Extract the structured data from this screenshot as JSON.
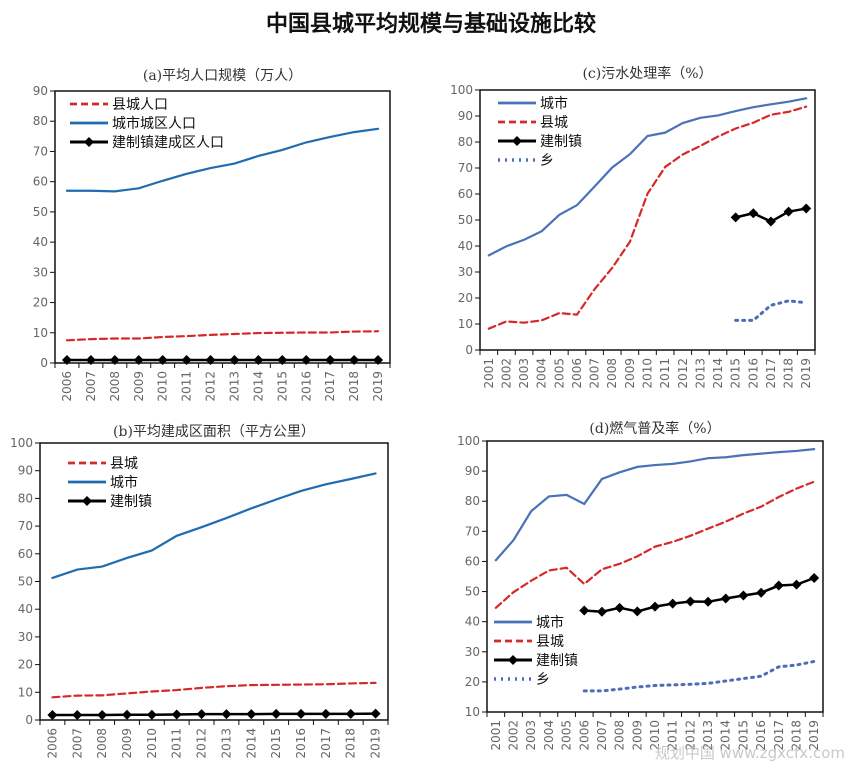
{
  "title": "中国县城平均规模与基础设施比较",
  "watermark": "规划中国 www.zgxcfx.com",
  "colors": {
    "city_a": "#1f6db0",
    "city_c": "#4a72b8",
    "county": "#d42a2a",
    "town": "#000000",
    "township": "#4f6cb8"
  },
  "chart_data": [
    {
      "id": "a",
      "type": "line",
      "title": "(a)平均人口规模（万人）",
      "x": [
        "2006",
        "2007",
        "2008",
        "2009",
        "2010",
        "2011",
        "2012",
        "2013",
        "2014",
        "2015",
        "2016",
        "2017",
        "2018",
        "2019"
      ],
      "ylim": [
        0,
        90
      ],
      "yticks": [
        0,
        10,
        20,
        30,
        40,
        50,
        60,
        70,
        80,
        90
      ],
      "grid": false,
      "legend": "top-left",
      "series": [
        {
          "name": "县城人口",
          "style": "dashed",
          "color": "#d42a2a",
          "values": [
            7.5,
            7.9,
            8.1,
            8.1,
            8.6,
            8.9,
            9.3,
            9.6,
            9.9,
            10.0,
            10.1,
            10.1,
            10.4,
            10.5
          ]
        },
        {
          "name": "城市城区人口",
          "style": "solid",
          "color": "#1f6db0",
          "values": [
            57.0,
            57.0,
            56.8,
            57.8,
            60.3,
            62.6,
            64.5,
            66.0,
            68.5,
            70.5,
            73.0,
            74.8,
            76.4,
            77.5
          ]
        },
        {
          "name": "建制镇建成区人口",
          "style": "diamond",
          "color": "#000000",
          "values": [
            1.0,
            1.0,
            1.0,
            1.0,
            1.0,
            1.0,
            1.0,
            1.0,
            1.0,
            1.0,
            1.0,
            1.0,
            1.0,
            1.0
          ]
        }
      ]
    },
    {
      "id": "c",
      "type": "line",
      "title": "(c)污水处理率（%）",
      "x": [
        "2001",
        "2002",
        "2003",
        "2004",
        "2005",
        "2006",
        "2007",
        "2008",
        "2009",
        "2010",
        "2011",
        "2012",
        "2013",
        "2014",
        "2015",
        "2016",
        "2017",
        "2018",
        "2019"
      ],
      "ylim": [
        0,
        100
      ],
      "yticks": [
        0,
        10,
        20,
        30,
        40,
        50,
        60,
        70,
        80,
        90,
        100
      ],
      "grid": false,
      "legend": "top-left",
      "series": [
        {
          "name": "城市",
          "style": "solid",
          "color": "#4a72b8",
          "values": [
            36.4,
            39.9,
            42.4,
            45.7,
            52.0,
            55.7,
            62.9,
            70.2,
            75.3,
            82.3,
            83.6,
            87.3,
            89.3,
            90.2,
            91.9,
            93.4,
            94.5,
            95.5,
            96.8
          ]
        },
        {
          "name": "县城",
          "style": "dashed",
          "color": "#d42a2a",
          "values": [
            8.2,
            11.0,
            10.5,
            11.4,
            14.2,
            13.6,
            23.4,
            31.6,
            41.6,
            60.1,
            70.4,
            75.2,
            78.5,
            82.1,
            85.2,
            87.4,
            90.5,
            91.6,
            93.6
          ]
        },
        {
          "name": "建制镇",
          "style": "diamond",
          "color": "#000000",
          "values": [
            null,
            null,
            null,
            null,
            null,
            null,
            null,
            null,
            null,
            null,
            null,
            null,
            null,
            null,
            51.0,
            52.6,
            49.4,
            53.2,
            54.4
          ]
        },
        {
          "name": "乡",
          "style": "dotted",
          "color": "#4f6cb8",
          "values": [
            null,
            null,
            null,
            null,
            null,
            null,
            null,
            null,
            null,
            null,
            null,
            null,
            null,
            null,
            11.4,
            11.4,
            17.2,
            18.9,
            18.2
          ]
        }
      ]
    },
    {
      "id": "b",
      "type": "line",
      "title": "(b)平均建成区面积（平方公里）",
      "x": [
        "2006",
        "2007",
        "2008",
        "2009",
        "2010",
        "2011",
        "2012",
        "2013",
        "2014",
        "2015",
        "2016",
        "2017",
        "2018",
        "2019"
      ],
      "ylim": [
        0,
        100
      ],
      "yticks": [
        0,
        10,
        20,
        30,
        40,
        50,
        60,
        70,
        80,
        90,
        100
      ],
      "grid": false,
      "legend": "top-left",
      "series": [
        {
          "name": "县城",
          "style": "dashed",
          "color": "#d42a2a",
          "values": [
            8.2,
            8.8,
            8.9,
            9.6,
            10.3,
            10.8,
            11.6,
            12.2,
            12.6,
            12.7,
            12.8,
            12.9,
            13.2,
            13.4
          ]
        },
        {
          "name": "城市",
          "style": "solid",
          "color": "#1f6db0",
          "values": [
            51.3,
            54.3,
            55.4,
            58.5,
            61.2,
            66.5,
            69.6,
            72.9,
            76.4,
            79.6,
            82.7,
            85.1,
            87.0,
            89.0
          ]
        },
        {
          "name": "建制镇",
          "style": "diamond",
          "color": "#000000",
          "values": [
            1.8,
            1.8,
            1.8,
            1.9,
            1.9,
            2.0,
            2.1,
            2.1,
            2.1,
            2.2,
            2.2,
            2.2,
            2.2,
            2.3
          ]
        }
      ]
    },
    {
      "id": "d",
      "type": "line",
      "title": "(d)燃气普及率（%）",
      "x": [
        "2001",
        "2002",
        "2003",
        "2004",
        "2005",
        "2006",
        "2007",
        "2008",
        "2009",
        "2010",
        "2011",
        "2012",
        "2013",
        "2014",
        "2015",
        "2016",
        "2017",
        "2018",
        "2019"
      ],
      "ylim": [
        10,
        100
      ],
      "yticks": [
        10,
        20,
        30,
        40,
        50,
        60,
        70,
        80,
        90,
        100
      ],
      "grid": false,
      "legend": "left",
      "series": [
        {
          "name": "城市",
          "style": "solid",
          "color": "#4a72b8",
          "values": [
            60.4,
            67.1,
            76.7,
            81.6,
            82.1,
            79.1,
            87.4,
            89.6,
            91.4,
            92.0,
            92.4,
            93.2,
            94.3,
            94.6,
            95.3,
            95.8,
            96.3,
            96.7,
            97.3
          ]
        },
        {
          "name": "县城",
          "style": "dashed",
          "color": "#d42a2a",
          "values": [
            44.6,
            49.8,
            53.6,
            57.0,
            57.9,
            52.5,
            57.4,
            59.2,
            61.7,
            64.9,
            66.5,
            68.5,
            70.9,
            73.2,
            75.9,
            78.2,
            81.4,
            84.2,
            86.5
          ]
        },
        {
          "name": "建制镇",
          "style": "diamond",
          "color": "#000000",
          "values": [
            null,
            null,
            null,
            null,
            null,
            43.7,
            43.3,
            44.6,
            43.4,
            45.0,
            46.0,
            46.7,
            46.6,
            47.7,
            48.7,
            49.6,
            52.0,
            52.3,
            54.5
          ]
        },
        {
          "name": "乡",
          "style": "dotted",
          "color": "#4f6cb8",
          "values": [
            null,
            null,
            null,
            null,
            null,
            17.0,
            17.0,
            17.6,
            18.3,
            18.8,
            19.0,
            19.2,
            19.5,
            20.3,
            21.1,
            21.9,
            25.0,
            25.6,
            26.8
          ]
        }
      ]
    }
  ]
}
